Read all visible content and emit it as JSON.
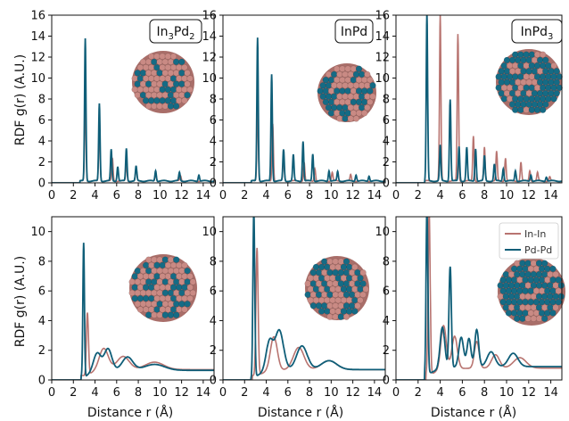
{
  "colors": {
    "in_in": "#b87470",
    "pd_pd": "#0f5e78",
    "sphere_in": "#c98a84",
    "sphere_pd": "#156b85"
  },
  "legend": [
    {
      "key": "in_in",
      "label": "In-In"
    },
    {
      "key": "pd_pd",
      "label": "Pd-Pd"
    }
  ],
  "ylabel": "RDF g(r) (A.U.)",
  "xlabel": "Distance r (Å)",
  "chart_data": [
    {
      "type": "line",
      "panel": "top-left",
      "label": "In3Pd2",
      "xlim": [
        0,
        15
      ],
      "ylim": [
        0,
        16
      ],
      "xticks": [
        0,
        2,
        4,
        6,
        8,
        10,
        12,
        14
      ],
      "yticks": [
        0,
        2,
        4,
        6,
        8,
        10,
        12,
        14,
        16
      ],
      "peaks": {
        "in_in": [
          [
            3.1,
            8.0
          ],
          [
            4.4,
            5.2
          ],
          [
            5.6,
            2.2
          ],
          [
            6.9,
            1.6
          ],
          [
            7.8,
            1.2
          ],
          [
            9.6,
            0.8
          ],
          [
            11.9,
            0.5
          ]
        ],
        "pd_pd": [
          [
            3.1,
            13.6
          ],
          [
            4.4,
            7.4
          ],
          [
            5.5,
            3.0
          ],
          [
            6.1,
            1.4
          ],
          [
            6.9,
            3.1
          ],
          [
            7.8,
            1.4
          ],
          [
            9.6,
            1.0
          ],
          [
            11.8,
            0.8
          ],
          [
            13.6,
            0.6
          ]
        ]
      }
    },
    {
      "type": "line",
      "panel": "top-middle",
      "label": "InPd",
      "xlim": [
        0,
        15
      ],
      "ylim": [
        0,
        16
      ],
      "xticks": [
        0,
        2,
        4,
        6,
        8,
        10,
        12,
        14
      ],
      "yticks": [
        0,
        2,
        4,
        6,
        8,
        10,
        12,
        14,
        16
      ],
      "peaks": {
        "in_in": [
          [
            3.2,
            7.5
          ],
          [
            4.6,
            5.5
          ],
          [
            5.6,
            2.2
          ],
          [
            7.5,
            1.8
          ],
          [
            8.5,
            1.2
          ],
          [
            10.1,
            0.8
          ],
          [
            11.8,
            0.6
          ]
        ],
        "pd_pd": [
          [
            3.2,
            13.7
          ],
          [
            4.5,
            10.2
          ],
          [
            5.6,
            3.0
          ],
          [
            6.5,
            2.5
          ],
          [
            7.4,
            3.8
          ],
          [
            8.3,
            2.6
          ],
          [
            9.8,
            1.0
          ],
          [
            10.6,
            0.9
          ],
          [
            12.3,
            0.6
          ],
          [
            13.5,
            0.5
          ]
        ]
      }
    },
    {
      "type": "line",
      "panel": "top-right",
      "label": "InPd3",
      "xlim": [
        0,
        15
      ],
      "ylim": [
        0,
        16
      ],
      "xticks": [
        0,
        2,
        4,
        6,
        8,
        10,
        12,
        14
      ],
      "yticks": [
        0,
        2,
        4,
        6,
        8,
        10,
        12,
        14,
        16
      ],
      "peaks": {
        "in_in": [
          [
            4.0,
            15.8
          ],
          [
            5.6,
            14.0
          ],
          [
            7.0,
            4.3
          ],
          [
            8.0,
            3.2
          ],
          [
            9.1,
            2.8
          ],
          [
            9.9,
            2.2
          ],
          [
            11.3,
            1.8
          ],
          [
            12.1,
            1.0
          ],
          [
            12.8,
            0.8
          ],
          [
            13.9,
            0.4
          ]
        ],
        "pd_pd": [
          [
            2.8,
            16.0
          ],
          [
            4.0,
            3.4
          ],
          [
            4.9,
            7.8
          ],
          [
            5.7,
            3.3
          ],
          [
            6.4,
            3.2
          ],
          [
            7.2,
            3.1
          ],
          [
            8.0,
            2.4
          ],
          [
            8.9,
            1.6
          ],
          [
            9.7,
            1.2
          ],
          [
            10.8,
            1.0
          ],
          [
            12.2,
            0.6
          ],
          [
            13.6,
            0.4
          ]
        ]
      }
    },
    {
      "type": "line",
      "panel": "bottom-left",
      "label": "",
      "xlim": [
        0,
        15
      ],
      "ylim": [
        0,
        11
      ],
      "xticks": [
        0,
        2,
        4,
        6,
        8,
        10,
        12,
        14
      ],
      "yticks": [
        0,
        2,
        4,
        6,
        8,
        10
      ],
      "broad": {
        "in_in": [
          [
            3.3,
            4.2,
            0.13
          ],
          [
            4.8,
            1.5,
            0.6
          ],
          [
            6.6,
            0.9,
            0.8
          ],
          [
            9.5,
            0.5,
            1.2
          ]
        ],
        "pd_pd": [
          [
            2.95,
            9.0,
            0.1
          ],
          [
            4.2,
            1.3,
            0.5
          ],
          [
            5.2,
            1.5,
            0.5
          ],
          [
            7.0,
            0.9,
            0.7
          ],
          [
            9.5,
            0.4,
            1.3
          ]
        ]
      },
      "baseline": {
        "in_in": 0.3,
        "pd_pd": 0.25
      }
    },
    {
      "type": "line",
      "panel": "bottom-middle",
      "label": "",
      "xlim": [
        0,
        15
      ],
      "ylim": [
        0,
        11
      ],
      "xticks": [
        0,
        2,
        4,
        6,
        8,
        10,
        12,
        14
      ],
      "yticks": [
        0,
        2,
        4,
        6,
        8,
        10
      ],
      "broad": {
        "in_in": [
          [
            3.15,
            8.6,
            0.14
          ],
          [
            4.7,
            2.3,
            0.45
          ],
          [
            7.0,
            1.5,
            0.7
          ],
          [
            9.8,
            0.6,
            1.0
          ]
        ],
        "pd_pd": [
          [
            2.85,
            11.0,
            0.12
          ],
          [
            4.3,
            2.0,
            0.45
          ],
          [
            5.2,
            2.7,
            0.55
          ],
          [
            7.3,
            1.6,
            0.7
          ],
          [
            9.8,
            0.6,
            1.0
          ]
        ]
      },
      "baseline": {
        "in_in": 0.3,
        "pd_pd": 0.3
      }
    },
    {
      "type": "line",
      "panel": "bottom-right",
      "label": "",
      "xlim": [
        0,
        15
      ],
      "ylim": [
        0,
        11
      ],
      "xticks": [
        0,
        2,
        4,
        6,
        8,
        10,
        12,
        14
      ],
      "yticks": [
        0,
        2,
        4,
        6,
        8,
        10
      ],
      "broad": {
        "in_in": [
          [
            3.0,
            11.0,
            0.13
          ],
          [
            4.3,
            3.0,
            0.35
          ],
          [
            5.3,
            2.2,
            0.35
          ],
          [
            7.3,
            1.8,
            0.3
          ],
          [
            9.0,
            0.9,
            0.5
          ],
          [
            11.2,
            0.7,
            0.8
          ]
        ],
        "pd_pd": [
          [
            2.8,
            11.0,
            0.12
          ],
          [
            4.2,
            2.8,
            0.3
          ],
          [
            4.9,
            6.8,
            0.15
          ],
          [
            5.9,
            2.0,
            0.3
          ],
          [
            6.6,
            1.9,
            0.25
          ],
          [
            7.3,
            2.5,
            0.25
          ],
          [
            8.6,
            1.0,
            0.5
          ],
          [
            10.6,
            0.9,
            0.6
          ]
        ]
      },
      "baseline": {
        "in_in": 0.4,
        "pd_pd": 0.5
      }
    }
  ]
}
